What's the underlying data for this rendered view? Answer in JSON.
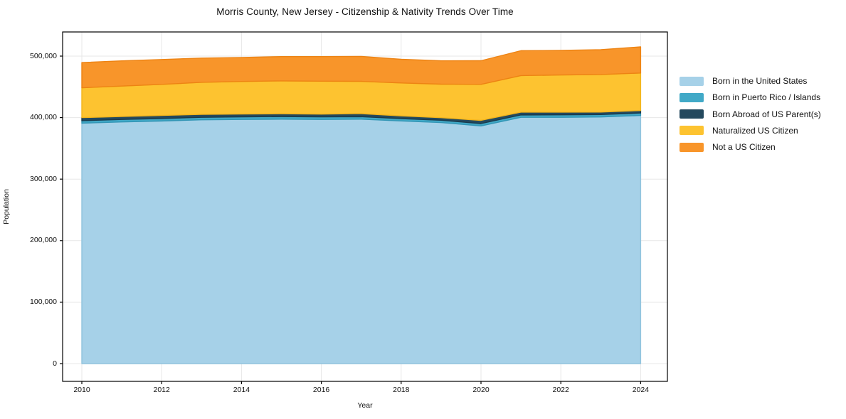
{
  "figure": {
    "title": "Morris County, New Jersey - Citizenship & Nativity Trends Over Time",
    "xlabel": "Year",
    "ylabel": "Population"
  },
  "colors": {
    "background": "#ffffff",
    "spine": "#000000",
    "grid": "#e7e7e7",
    "tick_text": "#111111"
  },
  "chart_data": {
    "type": "area",
    "stacked": true,
    "title": "Morris County, New Jersey - Citizenship & Nativity Trends Over Time",
    "xlabel": "Year",
    "ylabel": "Population",
    "grid": true,
    "legend_position": "right",
    "x": [
      2010,
      2011,
      2012,
      2013,
      2014,
      2015,
      2016,
      2017,
      2018,
      2019,
      2020,
      2021,
      2022,
      2023,
      2024
    ],
    "x_ticks": [
      "2010",
      "2012",
      "2014",
      "2016",
      "2018",
      "2020",
      "2022",
      "2024"
    ],
    "x_tick_values": [
      2010,
      2012,
      2014,
      2016,
      2018,
      2020,
      2022,
      2024
    ],
    "y_ticks": [
      {
        "value": 0,
        "label": "0"
      },
      {
        "value": 100000,
        "label": "100,000"
      },
      {
        "value": 200000,
        "label": "200,000"
      },
      {
        "value": 300000,
        "label": "300,000"
      },
      {
        "value": 400000,
        "label": "400,000"
      },
      {
        "value": 500000,
        "label": "500,000"
      }
    ],
    "xlim": [
      2009.5,
      2024.67
    ],
    "ylim": [
      0,
      539000
    ],
    "series": [
      {
        "name": "Born in the United States",
        "color": "#a6d1e8",
        "edge": "#90c3dd",
        "values": [
          391000,
          393000,
          394500,
          396500,
          397000,
          397500,
          397000,
          397500,
          394500,
          392000,
          386500,
          400500,
          400500,
          401000,
          403500
        ]
      },
      {
        "name": "Born in Puerto Rico / Islands",
        "color": "#41a9c7",
        "edge": "#3195b5",
        "values": [
          4000,
          4000,
          4000,
          4000,
          4200,
          4200,
          4200,
          4000,
          3800,
          3700,
          3800,
          3800,
          4000,
          4000,
          4000
        ]
      },
      {
        "name": "Born Abroad of US Parent(s)",
        "color": "#24495e",
        "edge": "#1a3a4c",
        "values": [
          5000,
          4800,
          5000,
          4800,
          4600,
          4500,
          4500,
          5000,
          4500,
          4200,
          5200,
          4500,
          4300,
          4000,
          4000
        ]
      },
      {
        "name": "Naturalized US Citizen",
        "color": "#fdc330",
        "edge": "#f2b41c",
        "values": [
          48500,
          49500,
          50500,
          52000,
          53000,
          53500,
          53500,
          52500,
          53500,
          54500,
          58500,
          59500,
          60500,
          61000,
          61000
        ]
      },
      {
        "name": "Not a US Citizen",
        "color": "#f8952a",
        "edge": "#ed8313",
        "values": [
          41000,
          41000,
          40500,
          39500,
          39000,
          39500,
          40000,
          40500,
          38500,
          38000,
          38500,
          40500,
          40000,
          40500,
          42500
        ]
      }
    ]
  }
}
